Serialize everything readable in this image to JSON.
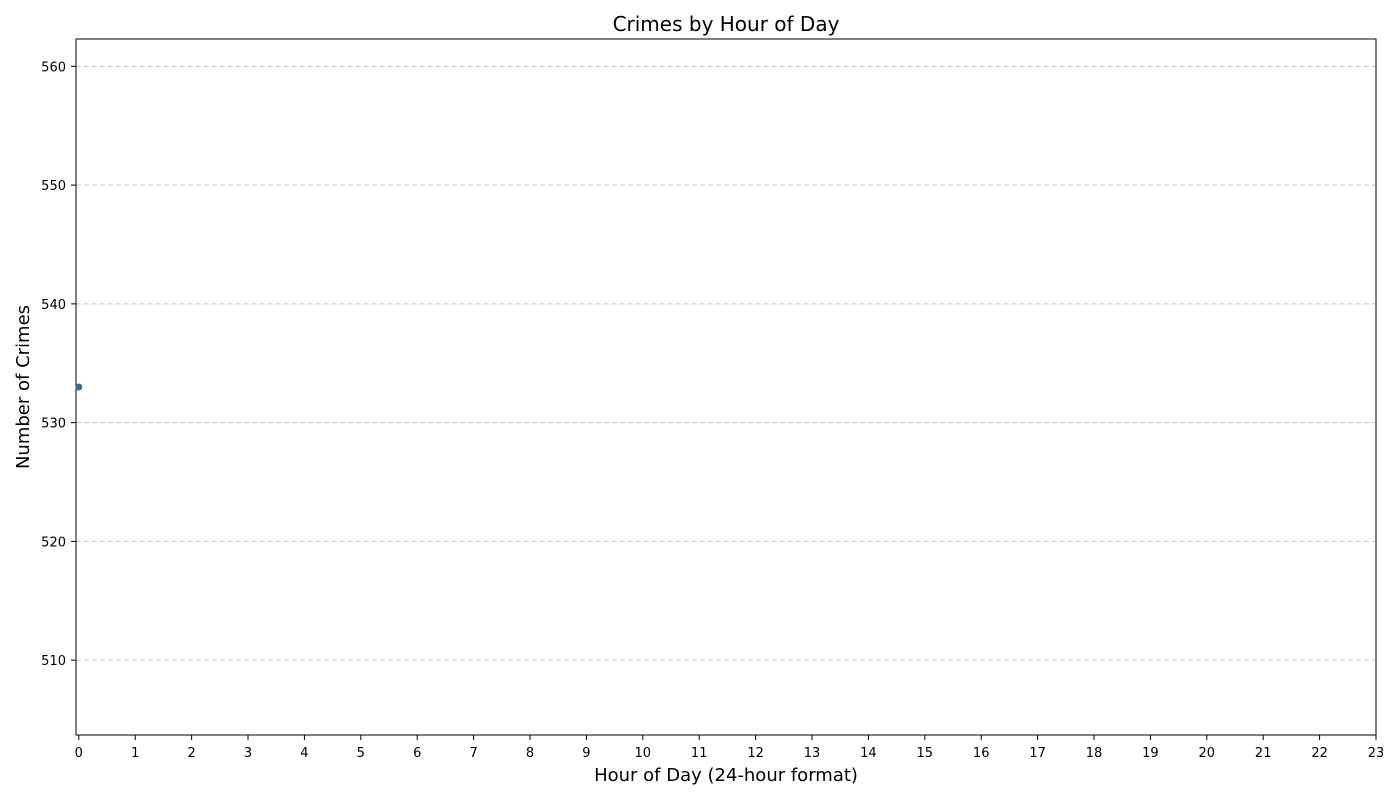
{
  "chart_data": {
    "type": "scatter",
    "title": "Crimes by Hour of Day",
    "xlabel": "Hour of Day (24-hour format)",
    "ylabel": "Number of Crimes",
    "xlim": [
      -0.05,
      23
    ],
    "ylim": [
      503.7,
      562.3
    ],
    "x_ticks": [
      0,
      1,
      2,
      3,
      4,
      5,
      6,
      7,
      8,
      9,
      10,
      11,
      12,
      13,
      14,
      15,
      16,
      17,
      18,
      19,
      20,
      21,
      22,
      23
    ],
    "x_tick_labels": [
      "0",
      "1",
      "2",
      "3",
      "4",
      "5",
      "6",
      "7",
      "8",
      "9",
      "10",
      "11",
      "12",
      "13",
      "14",
      "15",
      "16",
      "17",
      "18",
      "19",
      "20",
      "21",
      "22",
      "23"
    ],
    "y_ticks": [
      510,
      520,
      530,
      540,
      550,
      560
    ],
    "y_tick_labels": [
      "510",
      "520",
      "530",
      "540",
      "550",
      "560"
    ],
    "grid": "y-dashed",
    "legend": "none",
    "point_color": "#3a6e96",
    "grid_color": "#c8c8c8",
    "points": [
      {
        "x": 0,
        "y": 533
      }
    ]
  }
}
